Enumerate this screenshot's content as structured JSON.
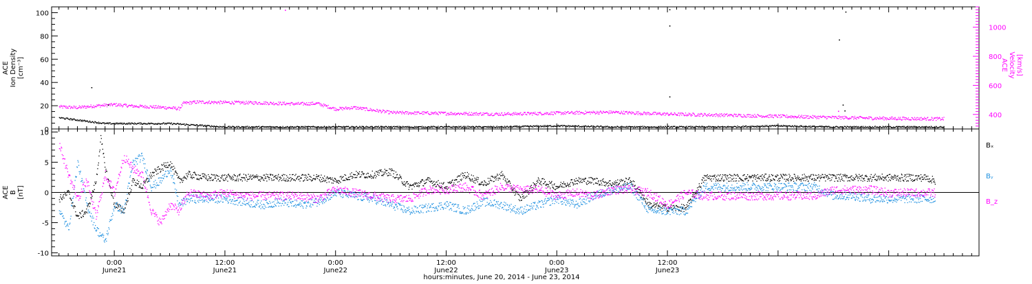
{
  "chart_data": [
    {
      "type": "scatter",
      "panel": "top",
      "left_axis_label": [
        "ACE",
        "Ion Density",
        "[cm⁻³]"
      ],
      "right_axis_label": [
        "ACE",
        "Velocity",
        "[km/s]"
      ],
      "left_ylim": [
        0,
        105
      ],
      "right_ylim": [
        300,
        1140
      ],
      "left_ticks": [
        0,
        20,
        40,
        60,
        80,
        100
      ],
      "right_ticks": [
        400,
        600,
        800,
        1000
      ],
      "colors": {
        "density": "#000000",
        "velocity": "#ff00ff"
      },
      "series": [
        {
          "axis": "left",
          "x": [
            -6,
            -5,
            -4,
            -3,
            -2,
            -1,
            0,
            2,
            4,
            6,
            8,
            10,
            12,
            14,
            18,
            24,
            30,
            36,
            42,
            48,
            54,
            60,
            66,
            72,
            78,
            82,
            86,
            90
          ],
          "y": [
            10,
            9,
            8,
            7,
            6,
            5,
            5,
            5,
            5,
            5,
            4,
            3,
            2,
            2,
            2,
            2,
            2,
            2,
            2,
            3,
            2,
            2,
            2,
            3,
            2,
            2,
            2,
            2
          ]
        },
        {
          "axis": "right",
          "x": [
            -6,
            -4,
            -2,
            0,
            2,
            4,
            6,
            7,
            7.5,
            9,
            12,
            16,
            20,
            22,
            24,
            26,
            30,
            36,
            42,
            48,
            54,
            60,
            66,
            72,
            78,
            84,
            90
          ],
          "y": [
            455,
            450,
            462,
            470,
            460,
            455,
            448,
            442,
            480,
            488,
            485,
            482,
            475,
            478,
            440,
            450,
            415,
            410,
            405,
            412,
            418,
            405,
            398,
            390,
            382,
            375,
            372
          ]
        }
      ],
      "outliers": [
        {
          "axis": "left",
          "x": -2.5,
          "y": 36
        },
        {
          "axis": "left",
          "x": -0.7,
          "y": 21
        },
        {
          "axis": "left",
          "x": 60.2,
          "y": 103
        },
        {
          "axis": "left",
          "x": 60.2,
          "y": 89
        },
        {
          "axis": "left",
          "x": 60.2,
          "y": 28
        },
        {
          "axis": "left",
          "x": 79.3,
          "y": 101
        },
        {
          "axis": "left",
          "x": 78.6,
          "y": 77
        },
        {
          "axis": "left",
          "x": 79.0,
          "y": 21
        },
        {
          "axis": "left",
          "x": 79.2,
          "y": 16
        },
        {
          "axis": "right",
          "x": 18.5,
          "y": 1120
        },
        {
          "axis": "right",
          "x": 78.5,
          "y": 425
        }
      ]
    },
    {
      "type": "scatter",
      "panel": "bottom",
      "left_axis_label": [
        "ACE",
        "B",
        "[nT]"
      ],
      "ylim": [
        -10.5,
        10.5
      ],
      "ticks": [
        -10,
        -5,
        0,
        5,
        10
      ],
      "zero_line": true,
      "series": [
        {
          "name": "Bₓ",
          "color": "#000000",
          "x": [
            -6,
            -5,
            -4,
            -3,
            -2,
            -1.5,
            -1,
            0,
            1,
            2,
            3,
            4,
            5,
            6,
            7,
            8,
            10,
            12,
            14,
            16,
            18,
            20,
            22,
            24,
            26,
            28,
            30,
            32,
            34,
            36,
            38,
            40,
            42,
            44,
            46,
            48,
            50,
            52,
            54,
            56,
            58,
            60,
            62,
            64,
            66,
            68,
            70,
            72,
            74,
            76,
            78,
            80,
            82,
            84,
            86,
            88,
            89
          ],
          "y": [
            -1,
            0,
            -4,
            -3,
            2,
            9,
            4,
            -2,
            -3,
            2,
            1,
            3,
            4,
            5,
            2,
            3,
            2.5,
            2.5,
            2.5,
            2.5,
            2.5,
            2.5,
            2.5,
            2.0,
            3.0,
            3.0,
            3.5,
            1.0,
            2.0,
            1.0,
            3.0,
            1.5,
            3.0,
            -1.0,
            2.0,
            1.0,
            2.0,
            2.0,
            1.5,
            2.0,
            -2.0,
            -2.5,
            -2.5,
            2.5,
            2.5,
            2.5,
            2.5,
            2.5,
            2.5,
            2.5,
            2.5,
            2.5,
            2.5,
            2.5,
            2.5,
            2.5,
            2.0
          ]
        },
        {
          "name": "Bᵧ",
          "color": "#1e90e0",
          "x": [
            -6,
            -5,
            -4,
            -3,
            -2,
            -1,
            0,
            1,
            2,
            3,
            4,
            5,
            6,
            7,
            8,
            10,
            12,
            14,
            16,
            18,
            20,
            22,
            24,
            26,
            28,
            30,
            32,
            34,
            36,
            38,
            40,
            42,
            44,
            46,
            48,
            50,
            52,
            54,
            56,
            58,
            60,
            62,
            64,
            66,
            68,
            70,
            72,
            74,
            76,
            78,
            80,
            82,
            84,
            86,
            88,
            89
          ],
          "y": [
            -3,
            -6,
            5,
            -2,
            -6,
            -8,
            -2,
            -3,
            5,
            6,
            1,
            2,
            4,
            -2,
            -1,
            -1,
            -1,
            -1.5,
            -2,
            -1.5,
            -2,
            -1.5,
            0,
            -0.5,
            -1,
            -2,
            -3,
            -2.5,
            -2,
            -3,
            -1.5,
            -2,
            -3,
            -2,
            -1,
            -2,
            -0.5,
            0.5,
            1,
            -3,
            -3,
            -3,
            1.0,
            1.0,
            1.0,
            1.0,
            1.0,
            1.0,
            1.0,
            -0.5,
            -0.5,
            -1,
            -1,
            -1,
            -1,
            -1
          ]
        },
        {
          "name": "B_z",
          "color": "#ff00ff",
          "x": [
            -6,
            -5,
            -4,
            -3,
            -2,
            -1,
            0,
            1,
            2,
            3,
            4,
            5,
            6,
            7,
            8,
            10,
            12,
            14,
            16,
            18,
            20,
            22,
            24,
            26,
            28,
            30,
            32,
            34,
            36,
            38,
            40,
            42,
            44,
            46,
            48,
            50,
            52,
            54,
            56,
            58,
            60,
            62,
            64,
            66,
            68,
            70,
            72,
            74,
            76,
            78,
            80,
            82,
            84,
            86,
            88,
            89
          ],
          "y": [
            8,
            3,
            -1,
            2,
            -4,
            3,
            0,
            6,
            4,
            3,
            -3,
            -5,
            -2,
            -3,
            0,
            -0.5,
            0,
            -0.5,
            -0.5,
            -0.5,
            -0.5,
            -1,
            0.5,
            0,
            -0.5,
            -1,
            -1,
            0.5,
            0.5,
            1,
            -0.5,
            1,
            0.5,
            0.5,
            -0.5,
            0,
            -0.5,
            0.5,
            0.5,
            0,
            -2,
            0,
            -0.5,
            -0.5,
            -0.5,
            -0.5,
            -0.5,
            -0.5,
            -0.5,
            0.5,
            0.5,
            0.5,
            0,
            0,
            0,
            0
          ]
        }
      ]
    }
  ],
  "x_axis": {
    "xlim": [
      -6.8,
      93.8
    ],
    "ticks": [
      {
        "x": 0,
        "time": "0:00",
        "day": "June21"
      },
      {
        "x": 12,
        "time": "12:00",
        "day": "June21"
      },
      {
        "x": 24,
        "time": "0:00",
        "day": "June22"
      },
      {
        "x": 36,
        "time": "12:00",
        "day": "June22"
      },
      {
        "x": 48,
        "time": "0:00",
        "day": "June23"
      },
      {
        "x": 60,
        "time": "12:00",
        "day": "June23"
      }
    ],
    "xlabel": "hours:minutes, June 20, 2014 - June 23, 2014"
  }
}
